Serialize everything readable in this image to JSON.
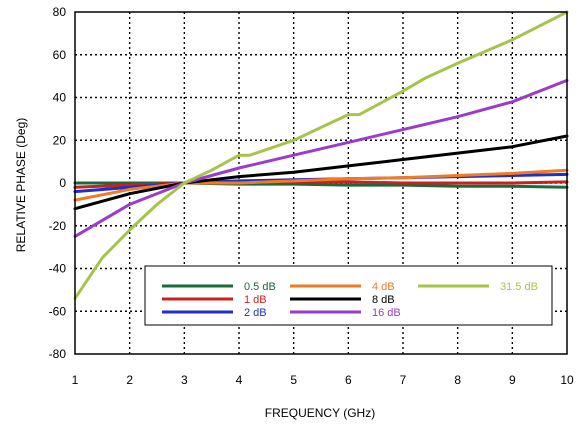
{
  "chart_data": {
    "type": "line",
    "xlabel": "FREQUENCY (GHz)",
    "ylabel": "RELATIVE PHASE (Deg)",
    "xlim": [
      1,
      10
    ],
    "ylim": [
      -80,
      80
    ],
    "x_ticks": [
      1,
      2,
      3,
      4,
      5,
      6,
      7,
      8,
      9,
      10
    ],
    "y_ticks": [
      -80,
      -60,
      -40,
      -20,
      0,
      20,
      40,
      60,
      80
    ],
    "grid": "dotted",
    "legend_position": "bottom-right",
    "series": [
      {
        "name": "0.5 dB",
        "color": "#1a6b3a",
        "x": [
          1,
          2,
          3,
          4,
          5,
          6,
          7,
          8,
          9,
          10
        ],
        "y": [
          0,
          0,
          0,
          -0.5,
          -0.5,
          -1,
          -1,
          -1.5,
          -1.5,
          -2
        ]
      },
      {
        "name": "1 dB",
        "color": "#cc1f1f",
        "x": [
          1,
          2,
          3,
          4,
          5,
          6,
          7,
          8,
          9,
          10
        ],
        "y": [
          -2,
          -1,
          0,
          0.5,
          0.5,
          0.5,
          0,
          0,
          0,
          0.5
        ]
      },
      {
        "name": "2 dB",
        "color": "#1f2fcc",
        "x": [
          1,
          2,
          3,
          4,
          5,
          6,
          7,
          8,
          9,
          10
        ],
        "y": [
          -4,
          -2,
          0,
          1,
          1.5,
          2,
          2.5,
          3,
          3.5,
          4
        ]
      },
      {
        "name": "4 dB",
        "color": "#f07b24",
        "x": [
          1,
          2,
          3,
          4,
          5,
          6,
          7,
          8,
          9,
          10
        ],
        "y": [
          -8,
          -3,
          0,
          0,
          1,
          2,
          2.5,
          3.5,
          4.5,
          6
        ]
      },
      {
        "name": "8 dB",
        "color": "#000000",
        "x": [
          1,
          2,
          3,
          4,
          5,
          6,
          7,
          8,
          9,
          10
        ],
        "y": [
          -12,
          -5,
          0,
          3,
          5,
          8,
          11,
          14,
          17,
          22
        ]
      },
      {
        "name": "16 dB",
        "color": "#9b3cc9",
        "x": [
          1,
          2,
          3,
          4,
          5,
          6,
          7,
          8,
          9,
          10
        ],
        "y": [
          -25,
          -10,
          0,
          7,
          13,
          19,
          25,
          31,
          38,
          48
        ]
      },
      {
        "name": "31.5 dB",
        "color": "#a6c44a",
        "x": [
          1,
          1.5,
          2,
          2.5,
          3,
          3.5,
          4,
          4.2,
          5,
          6,
          6.2,
          7,
          7.4,
          8,
          9,
          10
        ],
        "y": [
          -54,
          -35,
          -22,
          -10,
          0,
          6,
          13,
          13,
          20,
          32,
          32,
          43,
          49,
          56,
          67,
          80
        ]
      }
    ]
  }
}
